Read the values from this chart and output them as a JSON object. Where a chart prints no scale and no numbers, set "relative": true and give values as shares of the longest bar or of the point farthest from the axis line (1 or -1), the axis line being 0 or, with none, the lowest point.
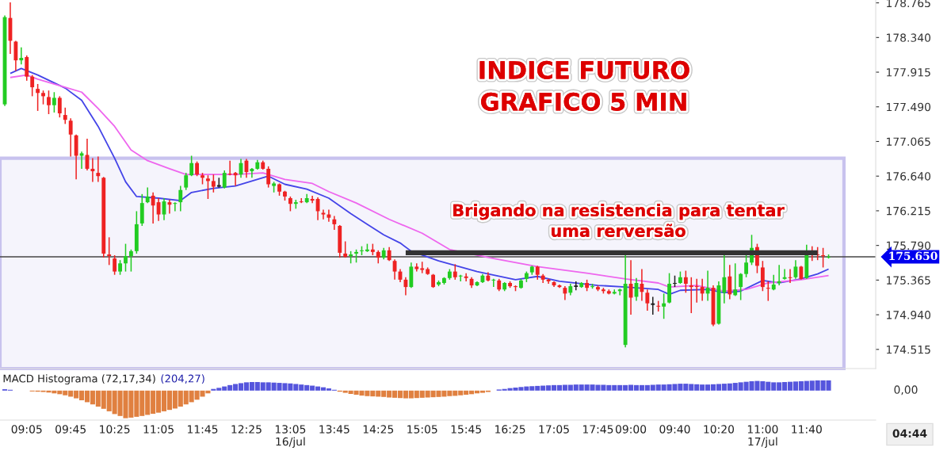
{
  "chart_data": [
    {
      "type": "candlestick",
      "title": "INDICE FUTURO\nGRAFICO 5 MIN",
      "categories": [
        null,
        null,
        null,
        null,
        "09:05",
        null,
        null,
        null,
        null,
        null,
        null,
        null,
        "09:45",
        null,
        null,
        null,
        null,
        null,
        null,
        null,
        "10:25",
        null,
        null,
        null,
        null,
        null,
        null,
        null,
        "11:05",
        null,
        null,
        null,
        null,
        null,
        null,
        null,
        "11:45",
        null,
        null,
        null,
        null,
        null,
        null,
        null,
        "12:25",
        null,
        null,
        null,
        null,
        null,
        null,
        null,
        "13:05\n16/jul",
        null,
        null,
        null,
        null,
        null,
        null,
        null,
        "13:45",
        null,
        null,
        null,
        null,
        null,
        null,
        null,
        "14:25",
        null,
        null,
        null,
        null,
        null,
        null,
        null,
        "15:05",
        null,
        null,
        null,
        null,
        null,
        null,
        null,
        "15:45",
        null,
        null,
        null,
        null,
        null,
        null,
        null,
        "16:25",
        null,
        null,
        null,
        null,
        null,
        null,
        null,
        "17:05",
        null,
        null,
        null,
        null,
        null,
        null,
        null,
        "17:45",
        null,
        null,
        null,
        null,
        null,
        "09:00",
        null,
        null,
        null,
        null,
        null,
        null,
        null,
        "09:40",
        null,
        null,
        null,
        null,
        null,
        null,
        null,
        "10:20",
        null,
        null,
        null,
        null,
        null,
        null,
        null,
        "11:00\n17/jul",
        null,
        null,
        null,
        null,
        null,
        null,
        null,
        "11:40",
        null,
        null,
        null,
        null
      ],
      "ohlc": [
        [
          177520,
          178610,
          177500,
          178590
        ],
        [
          178580,
          178770,
          178140,
          178300
        ],
        [
          178290,
          178300,
          177930,
          178060
        ],
        [
          178060,
          178220,
          178010,
          178090
        ],
        [
          178100,
          178120,
          177810,
          177860
        ],
        [
          177860,
          177880,
          177620,
          177730
        ],
        [
          177710,
          177770,
          177440,
          177660
        ],
        [
          177660,
          177690,
          177520,
          177620
        ],
        [
          177610,
          177690,
          177400,
          177510
        ],
        [
          177510,
          177670,
          177420,
          177600
        ],
        [
          177600,
          177620,
          177360,
          177410
        ],
        [
          177390,
          177480,
          177280,
          177330
        ],
        [
          177320,
          177350,
          176880,
          177150
        ],
        [
          177140,
          177150,
          176600,
          176890
        ],
        [
          176890,
          176940,
          176730,
          176920
        ],
        [
          176900,
          177100,
          176710,
          176730
        ],
        [
          176730,
          176860,
          176570,
          176700
        ],
        [
          176680,
          176880,
          176570,
          176640
        ],
        [
          176620,
          176630,
          175640,
          175690
        ],
        [
          175680,
          175890,
          175550,
          175660
        ],
        [
          175630,
          175670,
          175430,
          175470
        ],
        [
          175470,
          175610,
          175430,
          175570
        ],
        [
          175570,
          175810,
          175470,
          175660
        ],
        [
          175660,
          175740,
          175470,
          175720
        ],
        [
          175720,
          176210,
          175690,
          176050
        ],
        [
          176060,
          176420,
          176030,
          176310
        ],
        [
          176320,
          176500,
          176310,
          176390
        ],
        [
          176400,
          176440,
          176060,
          176280
        ],
        [
          176320,
          176370,
          176090,
          176170
        ],
        [
          176170,
          176370,
          176100,
          176330
        ],
        [
          176320,
          176350,
          176180,
          176290
        ],
        [
          176300,
          176320,
          176210,
          176310
        ],
        [
          176320,
          176520,
          176210,
          176470
        ],
        [
          176500,
          176680,
          176470,
          176650
        ],
        [
          176650,
          176890,
          176640,
          176800
        ],
        [
          176800,
          176820,
          176640,
          176660
        ],
        [
          176650,
          176680,
          176540,
          176620
        ],
        [
          176610,
          176650,
          176360,
          176580
        ],
        [
          176580,
          176660,
          176440,
          176510
        ],
        [
          176510,
          176620,
          176500,
          176530
        ],
        [
          176500,
          176710,
          176490,
          176680
        ],
        [
          176670,
          176830,
          176650,
          176660
        ],
        [
          176680,
          176690,
          176520,
          176650
        ],
        [
          176660,
          176850,
          176620,
          176800
        ],
        [
          176830,
          176850,
          176620,
          176690
        ],
        [
          176700,
          176740,
          176620,
          176730
        ],
        [
          176730,
          176840,
          176720,
          176810
        ],
        [
          176810,
          176830,
          176720,
          176730
        ],
        [
          176730,
          176760,
          176500,
          176540
        ],
        [
          176520,
          176570,
          176440,
          176550
        ],
        [
          176540,
          176550,
          176400,
          176450
        ],
        [
          176450,
          176460,
          176340,
          176390
        ],
        [
          176370,
          176390,
          176210,
          176300
        ],
        [
          176300,
          176350,
          176240,
          176320
        ],
        [
          176330,
          176370,
          176310,
          176320
        ],
        [
          176320,
          176420,
          176310,
          176370
        ],
        [
          176360,
          176400,
          176310,
          176340
        ],
        [
          176360,
          176380,
          176100,
          176210
        ],
        [
          176190,
          176230,
          176110,
          176170
        ],
        [
          176170,
          176230,
          176080,
          176130
        ],
        [
          176110,
          176150,
          175980,
          176050
        ],
        [
          176030,
          176040,
          175640,
          175700
        ],
        [
          175690,
          175840,
          175640,
          175650
        ],
        [
          175660,
          175720,
          175570,
          175680
        ],
        [
          175690,
          175740,
          175580,
          175710
        ],
        [
          175720,
          175780,
          175670,
          175730
        ],
        [
          175720,
          175810,
          175710,
          175740
        ],
        [
          175740,
          175810,
          175670,
          175710
        ],
        [
          175710,
          175730,
          175570,
          175640
        ],
        [
          175640,
          175760,
          175620,
          175730
        ],
        [
          175730,
          175770,
          175600,
          175610
        ],
        [
          175600,
          175620,
          175370,
          175470
        ],
        [
          175470,
          175500,
          175340,
          175370
        ],
        [
          175370,
          175400,
          175180,
          175280
        ],
        [
          175280,
          175580,
          175270,
          175530
        ],
        [
          175530,
          175570,
          175470,
          175500
        ],
        [
          175510,
          175590,
          175450,
          175490
        ],
        [
          175500,
          175520,
          175430,
          175440
        ],
        [
          175430,
          175440,
          175270,
          175280
        ],
        [
          175310,
          175360,
          175290,
          175340
        ],
        [
          175330,
          175400,
          175310,
          175390
        ],
        [
          175390,
          175500,
          175370,
          175470
        ],
        [
          175470,
          175560,
          175370,
          175400
        ],
        [
          175410,
          175430,
          175350,
          175420
        ],
        [
          175410,
          175450,
          175350,
          175390
        ],
        [
          175380,
          175400,
          175270,
          175300
        ],
        [
          175300,
          175350,
          175290,
          175340
        ],
        [
          175340,
          175440,
          175330,
          175420
        ],
        [
          175420,
          175460,
          175350,
          175360
        ],
        [
          175360,
          175380,
          175280,
          175370
        ],
        [
          175360,
          175380,
          175230,
          175250
        ],
        [
          175250,
          175340,
          175230,
          175330
        ],
        [
          175330,
          175350,
          175270,
          175290
        ],
        [
          175290,
          175300,
          175230,
          175280
        ],
        [
          175270,
          175380,
          175260,
          175360
        ],
        [
          175380,
          175470,
          175340,
          175450
        ],
        [
          175460,
          175540,
          175430,
          175530
        ],
        [
          175530,
          175540,
          175370,
          175430
        ],
        [
          175420,
          175440,
          175330,
          175370
        ],
        [
          175370,
          175380,
          175320,
          175350
        ],
        [
          175340,
          175350,
          175280,
          175300
        ],
        [
          175300,
          175310,
          175270,
          175280
        ],
        [
          175270,
          175290,
          175120,
          175200
        ],
        [
          175210,
          175320,
          175180,
          175290
        ],
        [
          175290,
          175350,
          175240,
          175290
        ],
        [
          175280,
          175340,
          175270,
          175330
        ],
        [
          175330,
          175370,
          175230,
          175270
        ],
        [
          175280,
          175320,
          175260,
          175290
        ],
        [
          175280,
          175300,
          175230,
          175250
        ],
        [
          175250,
          175270,
          175200,
          175230
        ],
        [
          175230,
          175250,
          175190,
          175200
        ],
        [
          175200,
          175250,
          175190,
          175220
        ],
        [
          175230,
          175260,
          175180,
          175250
        ],
        [
          174570,
          175670,
          174540,
          175320
        ],
        [
          175320,
          175610,
          174940,
          175150
        ],
        [
          175160,
          175390,
          175110,
          175330
        ],
        [
          175320,
          175500,
          175110,
          175220
        ],
        [
          175210,
          175250,
          174990,
          175080
        ],
        [
          175080,
          175160,
          174940,
          175060
        ],
        [
          175050,
          175110,
          174980,
          175040
        ],
        [
          175040,
          175200,
          174890,
          175080
        ],
        [
          175090,
          175450,
          175080,
          175320
        ],
        [
          175320,
          175420,
          175280,
          175330
        ],
        [
          175330,
          175470,
          175320,
          175400
        ],
        [
          175400,
          175480,
          175210,
          175320
        ],
        [
          175300,
          175400,
          174960,
          175280
        ],
        [
          175290,
          175380,
          175090,
          175280
        ],
        [
          175280,
          175380,
          175110,
          175200
        ],
        [
          175200,
          175480,
          175110,
          175270
        ],
        [
          175270,
          175300,
          174800,
          174820
        ],
        [
          174830,
          175350,
          174820,
          175300
        ],
        [
          175210,
          175670,
          175080,
          175400
        ],
        [
          175410,
          175550,
          175130,
          175190
        ],
        [
          175180,
          175570,
          175170,
          175250
        ],
        [
          175280,
          175450,
          175120,
          175440
        ],
        [
          175440,
          175670,
          175400,
          175580
        ],
        [
          175580,
          175920,
          175550,
          175760
        ],
        [
          175770,
          175810,
          175450,
          175540
        ],
        [
          175520,
          175600,
          175230,
          175280
        ],
        [
          175270,
          175350,
          175110,
          175260
        ],
        [
          175250,
          175430,
          175240,
          175310
        ],
        [
          175330,
          175550,
          175300,
          175350
        ],
        [
          175380,
          175500,
          175370,
          175400
        ],
        [
          175400,
          175500,
          175330,
          175390
        ],
        [
          175400,
          175610,
          175380,
          175530
        ],
        [
          175530,
          175540,
          175370,
          175380
        ],
        [
          175390,
          175800,
          175380,
          175700
        ],
        [
          175700,
          175780,
          175600,
          175680
        ],
        [
          175680,
          175770,
          175610,
          175670
        ],
        [
          175670,
          175760,
          175520,
          175660
        ],
        [
          175640,
          175680,
          175630,
          175650
        ]
      ],
      "colors": [
        "#22cc22",
        "#ee2222",
        "#ee2222",
        "#22cc22",
        "#ee2222",
        "#ee2222",
        "#ee2222",
        "#ee2222",
        "#ee2222",
        "#22cc22",
        "#ee2222",
        "#ee2222",
        "#ee2222",
        "#ee2222",
        "#22cc22",
        "#ee2222",
        "#ee2222",
        "#ee2222",
        "#ee2222",
        "#ee2222",
        "#ee2222",
        "#22cc22",
        "#22cc22",
        "#22cc22",
        "#22cc22",
        "#22cc22",
        "#22cc22",
        "#ee2222",
        "#ee2222",
        "#22cc22",
        "#ee2222",
        "#22cc22",
        "#22cc22",
        "#22cc22",
        "#22cc22",
        "#ee2222",
        "#ee2222",
        "#ee2222",
        "#ee2222",
        "#222222",
        "#22cc22",
        "#ee2222",
        "#ee2222",
        "#22cc22",
        "#ee2222",
        "#22cc22",
        "#22cc22",
        "#ee2222",
        "#ee2222",
        "#22cc22",
        "#ee2222",
        "#ee2222",
        "#ee2222",
        "#22cc22",
        "#ee2222",
        "#22cc22",
        "#ee2222",
        "#ee2222",
        "#ee2222",
        "#ee2222",
        "#ee2222",
        "#ee2222",
        "#ee2222",
        "#22cc22",
        "#22cc22",
        "#22cc22",
        "#22cc22",
        "#ee2222",
        "#ee2222",
        "#22cc22",
        "#ee2222",
        "#ee2222",
        "#ee2222",
        "#ee2222",
        "#22cc22",
        "#ee2222",
        "#ee2222",
        "#ee2222",
        "#ee2222",
        "#22cc22",
        "#22cc22",
        "#22cc22",
        "#ee2222",
        "#22cc22",
        "#ee2222",
        "#ee2222",
        "#22cc22",
        "#22cc22",
        "#ee2222",
        "#22cc22",
        "#ee2222",
        "#22cc22",
        "#ee2222",
        "#ee2222",
        "#22cc22",
        "#22cc22",
        "#22cc22",
        "#ee2222",
        "#ee2222",
        "#ee2222",
        "#ee2222",
        "#ee2222",
        "#ee2222",
        "#22cc22",
        "#222222",
        "#22cc22",
        "#ee2222",
        "#22cc22",
        "#ee2222",
        "#ee2222",
        "#ee2222",
        "#22cc22",
        "#22cc22",
        "#22cc22",
        "#ee2222",
        "#22cc22",
        "#ee2222",
        "#ee2222",
        "#222222",
        "#ee2222",
        "#22cc22",
        "#22cc22",
        "#222222",
        "#22cc22",
        "#ee2222",
        "#ee2222",
        "#ee2222",
        "#ee2222",
        "#22cc22",
        "#ee2222",
        "#22cc22",
        "#22cc22",
        "#ee2222",
        "#22cc22",
        "#22cc22",
        "#22cc22",
        "#22cc22",
        "#ee2222",
        "#ee2222",
        "#ee2222",
        "#22cc22",
        "#22cc22",
        "#22cc22",
        "#ee2222",
        "#22cc22",
        "#ee2222",
        "#22cc22",
        "#ee2222",
        "#ee2222",
        "#ee2222",
        "#22cc22"
      ],
      "series": [
        {
          "type": "line",
          "color": "#4444e8",
          "values": [
            null,
            177900,
            null,
            177960,
            null,
            null,
            177880,
            null,
            null,
            null,
            null,
            177720,
            null,
            null,
            177570,
            null,
            null,
            177250,
            null,
            null,
            176860,
            null,
            176570,
            null,
            176390,
            null,
            null,
            null,
            176370,
            null,
            null,
            null,
            176340,
            null,
            176440,
            null,
            null,
            null,
            176490,
            null,
            null,
            null,
            176520,
            null,
            null,
            null,
            null,
            null,
            176640,
            null,
            null,
            176540,
            null,
            null,
            null,
            176480,
            null,
            null,
            null,
            176370,
            null,
            null,
            null,
            176180,
            null,
            null,
            176050,
            null,
            null,
            175920,
            null,
            null,
            175820,
            null,
            175720,
            null,
            null,
            null,
            null,
            175600,
            null,
            null,
            null,
            null,
            null,
            null,
            175470,
            null,
            null,
            null,
            null,
            null,
            null,
            175370,
            null,
            null,
            null,
            175410,
            null,
            null,
            null,
            175350,
            null,
            null,
            null,
            null,
            null,
            null,
            175300,
            null,
            null,
            null,
            null,
            175280,
            null,
            null,
            null,
            null,
            null,
            175250,
            null,
            175190,
            null,
            175240,
            null,
            null,
            null,
            null,
            175250,
            null,
            null,
            175210,
            null,
            null,
            175230,
            null,
            null,
            null,
            175360,
            null,
            null,
            175330,
            null,
            null,
            null,
            175380,
            null,
            null,
            175440,
            null,
            175500
          ]
        },
        {
          "type": "line",
          "color": "#ee66ee",
          "values": [
            null,
            177850,
            null,
            null,
            177880,
            null,
            177830,
            null,
            null,
            null,
            null,
            177730,
            null,
            null,
            177670,
            null,
            null,
            177470,
            null,
            null,
            177250,
            null,
            null,
            176960,
            null,
            null,
            176830,
            null,
            null,
            null,
            176730,
            null,
            null,
            176660,
            null,
            null,
            null,
            176660,
            null,
            null,
            null,
            null,
            176660,
            null,
            null,
            null,
            null,
            176680,
            null,
            null,
            null,
            176600,
            null,
            null,
            null,
            null,
            176550,
            null,
            null,
            176450,
            null,
            null,
            null,
            null,
            176310,
            null,
            null,
            null,
            null,
            null,
            176110,
            null,
            null,
            null,
            null,
            null,
            175940,
            null,
            null,
            null,
            null,
            175740,
            null,
            null,
            null,
            null,
            null,
            null,
            null,
            175630,
            null,
            null,
            null,
            null,
            null,
            null,
            null,
            175530,
            null,
            null,
            null,
            null,
            null,
            null,
            null,
            null,
            175450,
            null,
            null,
            null,
            null,
            null,
            null,
            175380,
            null,
            null,
            null,
            null,
            null,
            175330,
            null,
            175280,
            null,
            null,
            null,
            null,
            175300,
            null,
            null,
            null,
            null,
            175230,
            null,
            null,
            null,
            175250,
            null,
            null,
            null,
            175330,
            null,
            null,
            null,
            null,
            null,
            175370,
            null,
            null,
            null,
            null,
            175420
          ]
        },
        {
          "type": "line",
          "color": "#333333",
          "values": [
            null,
            null,
            null,
            null,
            null,
            null,
            null,
            null,
            null,
            null,
            null,
            null,
            null,
            null,
            null,
            null,
            null,
            null,
            null,
            null,
            null,
            null,
            null,
            null,
            null,
            null,
            null,
            null,
            null,
            null,
            null,
            null,
            null,
            null,
            null,
            null,
            null,
            null,
            null,
            null,
            null,
            null,
            null,
            null,
            null,
            null,
            null,
            null,
            null,
            null,
            null,
            null,
            null,
            null,
            null,
            null,
            null,
            null,
            null,
            null,
            null,
            null,
            null,
            null,
            null,
            null,
            null,
            null,
            null,
            null,
            null,
            null,
            null,
            175700,
            175700,
            175700,
            175700,
            175700,
            175700,
            175700,
            175700,
            175700,
            175700,
            175700,
            175700,
            175700,
            175700,
            175700,
            175700,
            175700,
            175700,
            175700,
            175700,
            175700,
            175700,
            175700,
            175700,
            175700,
            175700,
            175700,
            175700,
            175700,
            175700,
            175700,
            175700,
            175700,
            175700,
            175700,
            175700,
            175700,
            175700,
            175700,
            175700,
            175700,
            175700,
            175700,
            175700,
            175700,
            175700,
            175700,
            175700,
            175700,
            175700,
            175700,
            175700,
            175700,
            175700,
            175700,
            175700,
            175700,
            175700,
            175700,
            175700,
            175700,
            175700,
            175700,
            175700,
            175700,
            175700,
            175700,
            175700,
            175700,
            175700,
            175700,
            175700,
            175700,
            175700,
            175700,
            175700,
            null,
            null
          ]
        }
      ],
      "ylim": [
        174280,
        178800
      ],
      "yticks": [
        {
          "value": 174515,
          "label": "174.515"
        },
        {
          "value": 174940,
          "label": "174.940"
        },
        {
          "value": 175365,
          "label": "175.365"
        },
        {
          "value": 175790,
          "label": "175.790"
        },
        {
          "value": 176215,
          "label": "176.215"
        },
        {
          "value": 176640,
          "label": "176.640"
        },
        {
          "value": 177065,
          "label": "177.065"
        },
        {
          "value": 177490,
          "label": "177.490"
        },
        {
          "value": 177915,
          "label": "177.915"
        },
        {
          "value": 178340,
          "label": "178.340"
        },
        {
          "value": 178765,
          "label": "178.765"
        }
      ],
      "ref_lines": [
        {
          "axis": "y",
          "value": 175650,
          "color": "#444444"
        }
      ],
      "bands": [
        {
          "axis": "y",
          "from": 174280,
          "to": 176860,
          "color": "#c8c2ee"
        }
      ],
      "annotations": [
        "Brigando na resistencia para tentar\numa rerversão",
        "175.650"
      ]
    },
    {
      "type": "bar",
      "title": "MACD Histograma (72,17,34)",
      "subtitle": "(204,27)",
      "relative": true,
      "categories": [
        null,
        null,
        null,
        null,
        null,
        null,
        null,
        null,
        null,
        null,
        null,
        null,
        null,
        null,
        null,
        null,
        null,
        null,
        null,
        null,
        null,
        null,
        null,
        null,
        null,
        null,
        null,
        null,
        null,
        null,
        null,
        null,
        null,
        null,
        null,
        null,
        null,
        null,
        null,
        null,
        null,
        null,
        null,
        null,
        null,
        null,
        null,
        null,
        null,
        null,
        null,
        null,
        null,
        null,
        null,
        null,
        null,
        null,
        null,
        null,
        null,
        null,
        null,
        null,
        null,
        null,
        null,
        null,
        null,
        null,
        null,
        null,
        null,
        null,
        null,
        null,
        null,
        null,
        null,
        null,
        null,
        null,
        null,
        null,
        null,
        null,
        null,
        null,
        null,
        null,
        null,
        null,
        null,
        null,
        null,
        null,
        null,
        null,
        null,
        null,
        null,
        null,
        null,
        null,
        null,
        null,
        null,
        null,
        null,
        null,
        null,
        null,
        null,
        null,
        null,
        null,
        null,
        null,
        null,
        null,
        null,
        null,
        null,
        null,
        null,
        null,
        null,
        null,
        null,
        null,
        null,
        null,
        null,
        null,
        null,
        null,
        null,
        null,
        null,
        null,
        null,
        null,
        null,
        null,
        null,
        null,
        null,
        null,
        null,
        null,
        null
      ],
      "values": [
        0.05,
        0.03,
        null,
        null,
        null,
        -0.03,
        -0.04,
        -0.05,
        -0.07,
        -0.1,
        -0.13,
        -0.17,
        -0.22,
        -0.28,
        -0.35,
        -0.42,
        -0.5,
        -0.58,
        -0.66,
        -0.75,
        -0.85,
        -0.92,
        -1,
        -0.98,
        -0.95,
        -0.92,
        -0.88,
        -0.84,
        -0.8,
        -0.75,
        -0.7,
        -0.65,
        -0.58,
        -0.5,
        -0.42,
        -0.33,
        -0.22,
        -0.1,
        0.06,
        0.1,
        0.15,
        0.2,
        0.24,
        0.27,
        0.3,
        0.31,
        0.31,
        0.3,
        0.3,
        0.29,
        0.28,
        0.27,
        0.26,
        0.24,
        0.22,
        0.2,
        0.18,
        0.15,
        0.12,
        0.08,
        0.03,
        -0.04,
        -0.08,
        -0.12,
        -0.15,
        -0.18,
        -0.2,
        -0.21,
        -0.22,
        -0.23,
        -0.25,
        -0.26,
        -0.27,
        -0.28,
        -0.28,
        -0.27,
        -0.26,
        -0.25,
        -0.24,
        -0.23,
        -0.22,
        -0.2,
        -0.19,
        -0.17,
        -0.15,
        -0.13,
        -0.1,
        -0.08,
        -0.05,
        null,
        0.04,
        0.06,
        0.09,
        0.11,
        0.13,
        0.15,
        0.16,
        0.17,
        0.18,
        0.19,
        0.2,
        0.2,
        0.21,
        0.21,
        0.22,
        0.22,
        0.22,
        0.22,
        0.21,
        0.21,
        0.2,
        0.2,
        0.2,
        0.2,
        0.21,
        0.2,
        0.2,
        0.2,
        0.21,
        0.22,
        0.22,
        0.23,
        0.24,
        0.25,
        0.25,
        0.24,
        0.23,
        0.22,
        0.22,
        0.23,
        0.24,
        0.25,
        0.26,
        0.28,
        0.3,
        0.32,
        0.34,
        0.35,
        0.34,
        0.32,
        0.3,
        0.3,
        0.31,
        0.32,
        0.33,
        0.34,
        0.35,
        0.36,
        0.37,
        0.37,
        0.37
      ],
      "colors": [
        "#5555dd",
        "#5555dd",
        "#5555dd",
        "#e08040",
        "#e08040",
        "#e08040",
        "#e08040",
        "#e08040",
        "#e08040",
        "#e08040",
        "#e08040",
        "#e08040",
        "#e08040",
        "#e08040",
        "#e08040",
        "#e08040",
        "#e08040",
        "#e08040",
        "#e08040",
        "#e08040",
        "#e08040",
        "#e08040",
        "#e08040",
        "#e08040",
        "#e08040",
        "#e08040",
        "#e08040",
        "#e08040",
        "#e08040",
        "#e08040",
        "#e08040",
        "#e08040",
        "#e08040",
        "#e08040",
        "#e08040",
        "#e08040",
        "#e08040",
        "#e08040",
        "#5555dd",
        "#5555dd",
        "#5555dd",
        "#5555dd",
        "#5555dd",
        "#5555dd",
        "#5555dd",
        "#5555dd",
        "#5555dd",
        "#5555dd",
        "#5555dd",
        "#5555dd",
        "#5555dd",
        "#5555dd",
        "#5555dd",
        "#5555dd",
        "#5555dd",
        "#5555dd",
        "#5555dd",
        "#5555dd",
        "#5555dd",
        "#5555dd",
        "#5555dd",
        "#e08040",
        "#e08040",
        "#e08040",
        "#e08040",
        "#e08040",
        "#e08040",
        "#e08040",
        "#e08040",
        "#e08040",
        "#e08040",
        "#e08040",
        "#e08040",
        "#e08040",
        "#e08040",
        "#e08040",
        "#e08040",
        "#e08040",
        "#e08040",
        "#e08040",
        "#e08040",
        "#e08040",
        "#e08040",
        "#e08040",
        "#e08040",
        "#e08040",
        "#e08040",
        "#e08040",
        "#e08040",
        "#e08040",
        "#5555dd",
        "#5555dd",
        "#5555dd",
        "#5555dd",
        "#5555dd",
        "#5555dd",
        "#5555dd",
        "#5555dd",
        "#5555dd",
        "#5555dd",
        "#5555dd",
        "#5555dd",
        "#5555dd",
        "#5555dd",
        "#5555dd",
        "#5555dd",
        "#5555dd",
        "#5555dd",
        "#5555dd",
        "#5555dd",
        "#5555dd",
        "#5555dd",
        "#5555dd",
        "#5555dd",
        "#5555dd",
        "#5555dd",
        "#5555dd",
        "#5555dd",
        "#5555dd",
        "#5555dd",
        "#5555dd",
        "#5555dd",
        "#5555dd",
        "#5555dd",
        "#5555dd",
        "#5555dd",
        "#5555dd",
        "#5555dd",
        "#5555dd",
        "#5555dd",
        "#5555dd",
        "#5555dd",
        "#5555dd",
        "#5555dd",
        "#5555dd",
        "#5555dd",
        "#5555dd",
        "#5555dd",
        "#5555dd",
        "#5555dd",
        "#5555dd",
        "#5555dd",
        "#5555dd",
        "#5555dd",
        "#5555dd",
        "#5555dd",
        "#5555dd",
        "#5555dd",
        "#5555dd",
        "#5555dd",
        "#5555dd"
      ],
      "annotations": [
        "0,00",
        "04:44"
      ]
    }
  ]
}
